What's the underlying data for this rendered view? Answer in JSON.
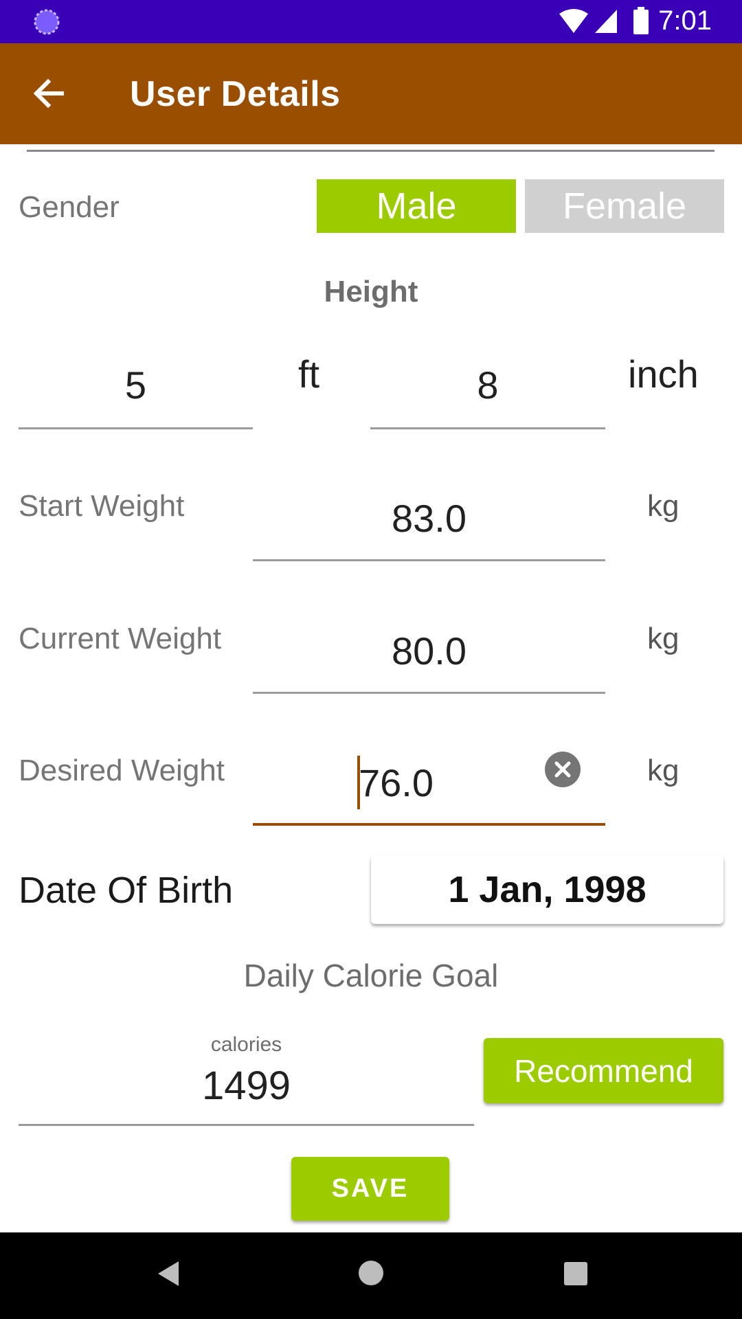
{
  "status_bar": {
    "time": "7:01",
    "icons": [
      "loading-icon",
      "wifi-icon",
      "signal-icon",
      "battery-icon"
    ],
    "background": "#3a00b7"
  },
  "app_bar": {
    "title": "User Details",
    "background": "#994e00",
    "back_icon": "arrow-back-icon"
  },
  "gender": {
    "label": "Gender",
    "options": [
      "Male",
      "Female"
    ],
    "selected": "Male",
    "selected_color": "#9ccc00",
    "unselected_color": "#d0d0d0"
  },
  "height": {
    "heading": "Height",
    "feet_value": "5",
    "feet_unit": "ft",
    "inch_value": "8",
    "inch_unit": "inch"
  },
  "start_weight": {
    "label": "Start Weight",
    "value": "83.0",
    "unit": "kg"
  },
  "current_weight": {
    "label": "Current Weight",
    "value": "80.0",
    "unit": "kg"
  },
  "desired_weight": {
    "label": "Desired Weight",
    "value": "76.0",
    "unit": "kg",
    "clear_icon": "clear-icon"
  },
  "dob": {
    "label": "Date Of Birth",
    "value": "1 Jan, 1998"
  },
  "calorie": {
    "heading": "Daily Calorie Goal",
    "hint": "calories",
    "value": "1499",
    "recommend_label": "Recommend"
  },
  "save_label": "SAVE",
  "nav_bar": {
    "icons": [
      "back-triangle-icon",
      "home-circle-icon",
      "recents-square-icon"
    ]
  }
}
